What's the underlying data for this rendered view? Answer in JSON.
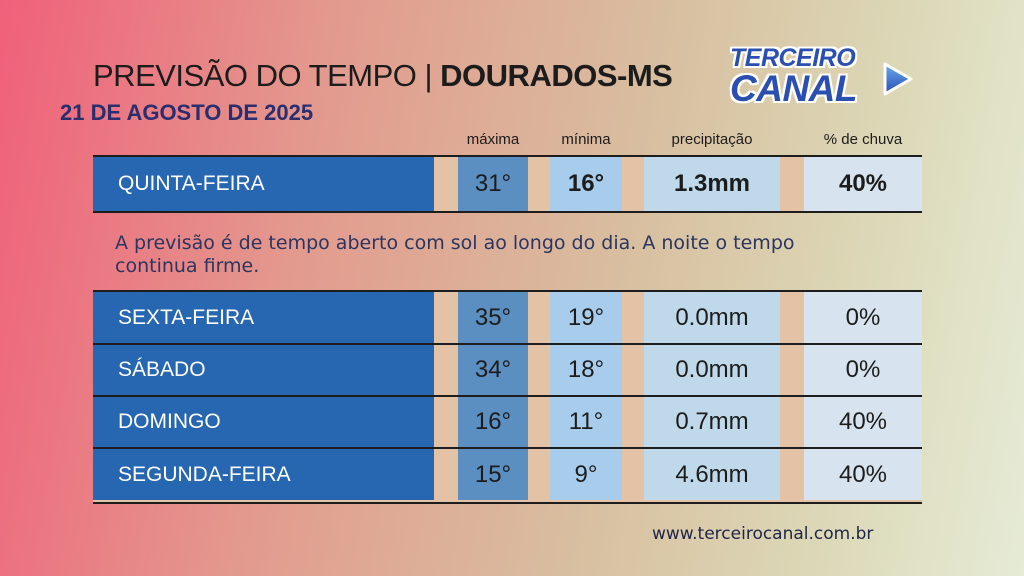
{
  "header": {
    "title_prefix": "PREVISÃO DO TEMPO | ",
    "title_city": "DOURADOS-MS",
    "date": "21 DE AGOSTO DE 2025"
  },
  "logo": {
    "line1": "TERCEIRO",
    "line2": "CANAL",
    "icon": "play-icon",
    "color": "#2b4fb0"
  },
  "columns": {
    "max": "máxima",
    "min": "mínima",
    "precip": "precipitação",
    "rain": "% de chuva"
  },
  "today": {
    "day": "QUINTA-FEIRA",
    "max": "31°",
    "min": "16°",
    "precip": "1.3mm",
    "rain": "40%",
    "description": "A previsão é de tempo aberto com sol ao longo do dia. A noite o tempo continua firme."
  },
  "forecast": [
    {
      "day": "SEXTA-FEIRA",
      "max": "35°",
      "min": "19°",
      "precip": "0.0mm",
      "rain": "0%"
    },
    {
      "day": "SÁBADO",
      "max": "34°",
      "min": "18°",
      "precip": "0.0mm",
      "rain": "0%"
    },
    {
      "day": "DOMINGO",
      "max": "16°",
      "min": "11°",
      "precip": "0.7mm",
      "rain": "40%"
    },
    {
      "day": "SEGUNDA-FEIRA",
      "max": "15°",
      "min": "9°",
      "precip": "4.6mm",
      "rain": "40%"
    }
  ],
  "footer": {
    "url": "www.terceirocanal.com.br"
  },
  "colors": {
    "day_cell": "#2766b0",
    "max_cell": "#5b8ec1",
    "min_cell": "#a8ccec",
    "precip_cell": "#bfd8ea",
    "rain_cell": "#d7e3ee"
  }
}
